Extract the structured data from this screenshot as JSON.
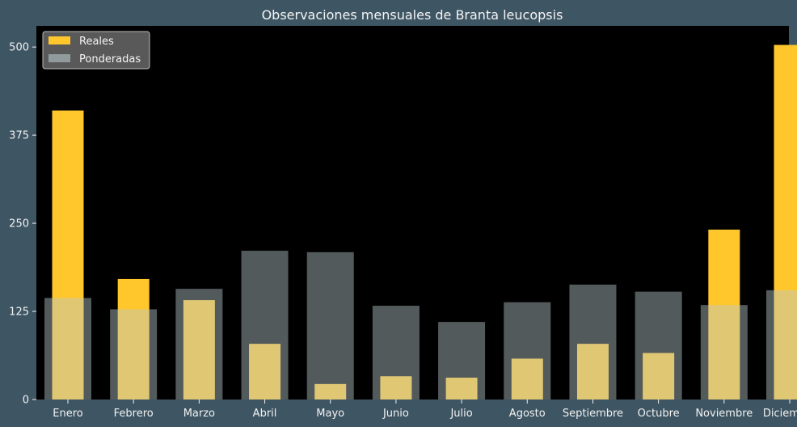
{
  "chart_data": {
    "type": "bar",
    "title": "Observaciones mensuales de Branta leucopsis",
    "xlabel": "",
    "ylabel": "",
    "categories": [
      "Enero",
      "Febrero",
      "Marzo",
      "Abril",
      "Mayo",
      "Junio",
      "Julio",
      "Agosto",
      "Septiembre",
      "Octubre",
      "Noviembre",
      "Diciembre"
    ],
    "series": [
      {
        "name": "Reales",
        "color": "#ffc72c",
        "values": [
          410,
          171,
          141,
          79,
          22,
          33,
          31,
          58,
          79,
          66,
          241,
          503
        ]
      },
      {
        "name": "Ponderadas",
        "color": "#b8c7cc",
        "values": [
          144,
          128,
          157,
          211,
          209,
          133,
          110,
          138,
          163,
          153,
          134,
          155
        ]
      }
    ],
    "ylim": [
      0,
      530
    ],
    "yticks": [
      0,
      125,
      250,
      375,
      500
    ],
    "legend_position": "top-left",
    "background": "#000000",
    "figure_background": "#3e5563"
  }
}
